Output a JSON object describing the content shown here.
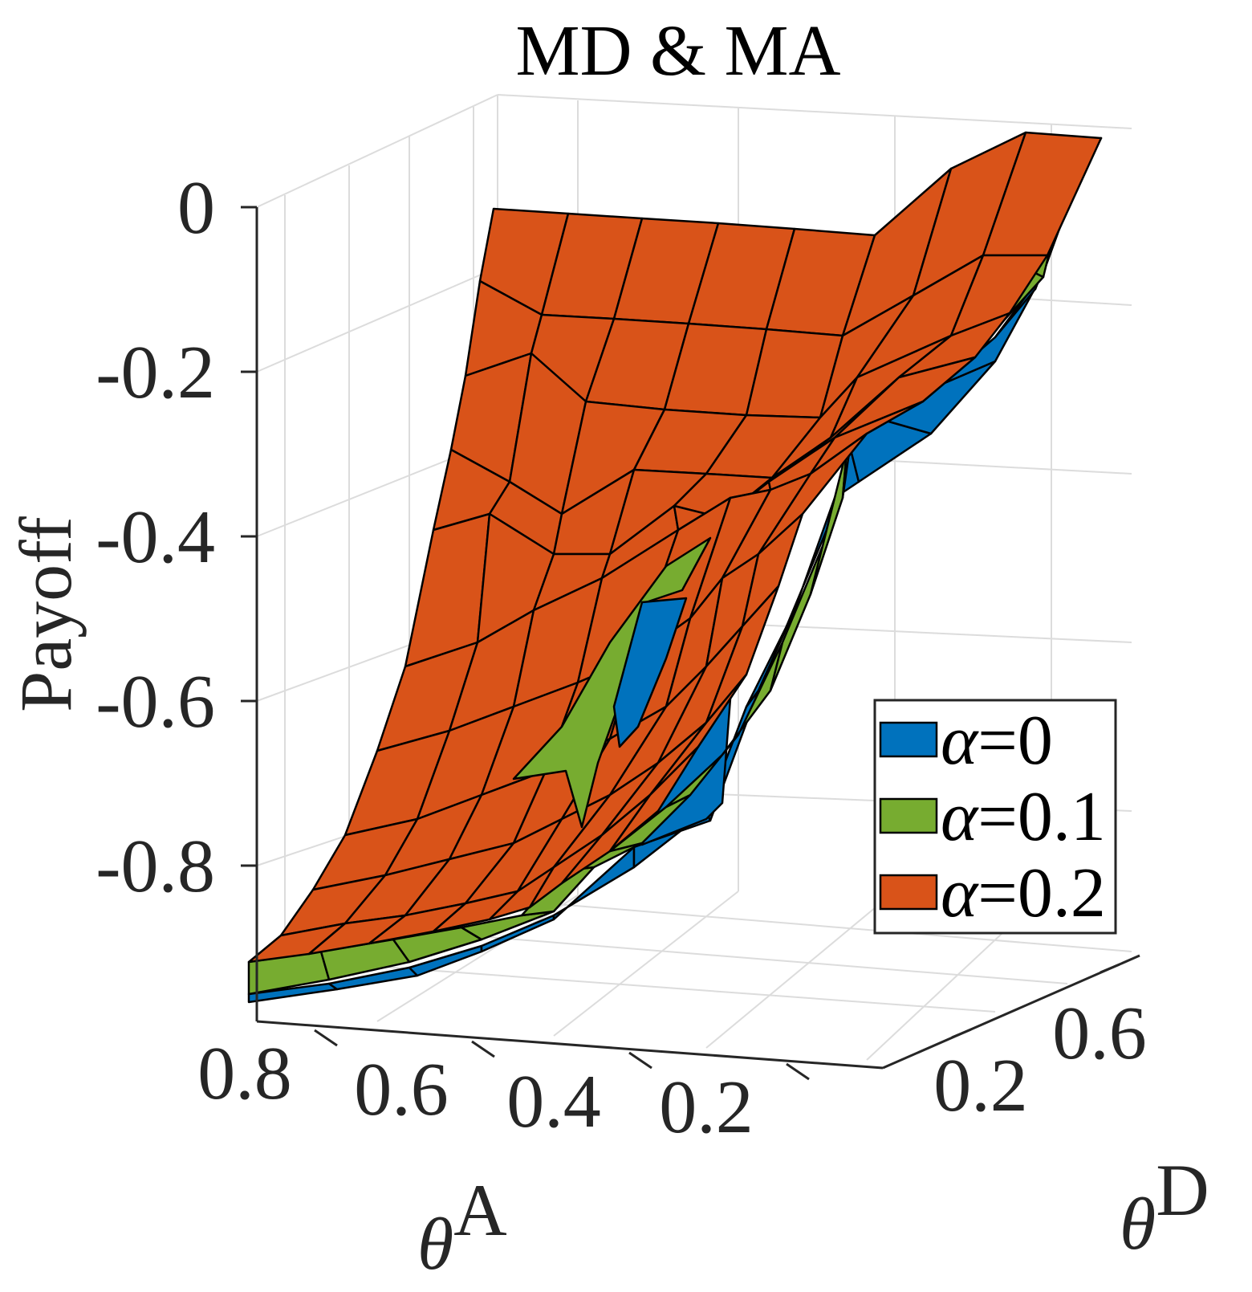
{
  "chart_data": {
    "type": "surface3d",
    "title": "MD & MA",
    "zlabel": "Payoff",
    "xlabel": {
      "symbol": "θ",
      "superscript": "A"
    },
    "ylabel": {
      "symbol": "θ",
      "superscript": "D"
    },
    "zlim": [
      -0.96,
      0.0
    ],
    "z_ticks": [
      "0",
      "-0.2",
      "-0.4",
      "-0.6",
      "-0.8"
    ],
    "x_ticks": [
      "0.8",
      "0.6",
      "0.4",
      "0.2"
    ],
    "y_ticks": [
      "0.2",
      "0.6"
    ],
    "grid": true,
    "legend_position": "right",
    "colors": {
      "alpha0": "#0072bd",
      "alpha01": "#77ac30",
      "alpha02": "#d95319"
    },
    "series": [
      {
        "name": "α=0",
        "symbol": "α",
        "value": "=0",
        "color": "#0072bd"
      },
      {
        "name": "α=0.1",
        "symbol": "α",
        "value": "=0.1",
        "color": "#77ac30"
      },
      {
        "name": "α=0.2",
        "symbol": "α",
        "value": "=0.2",
        "color": "#d95319"
      }
    ]
  }
}
